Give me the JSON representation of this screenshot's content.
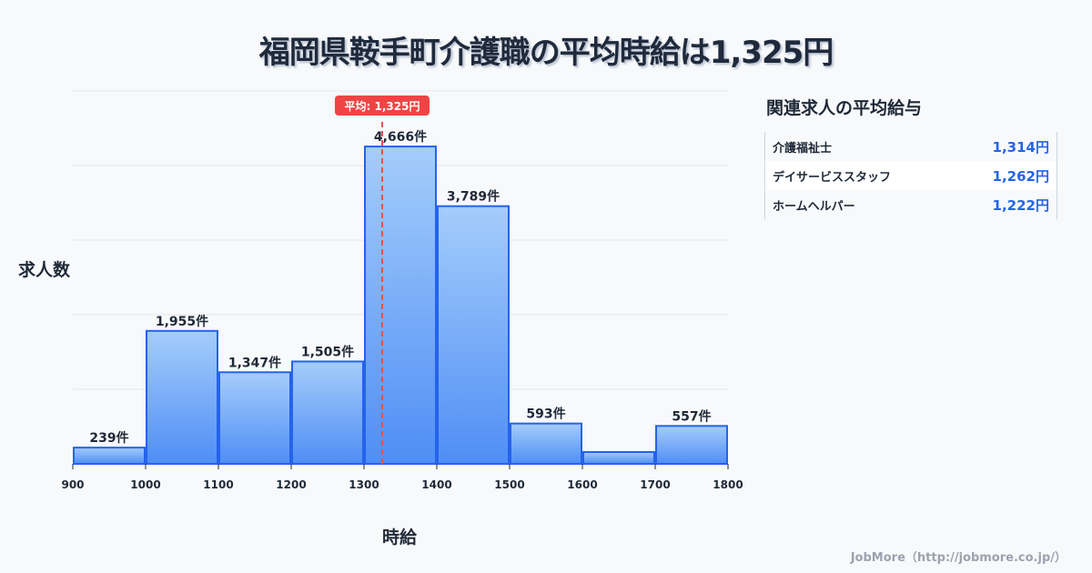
{
  "title": "福岡県鞍手町介護職の平均時給は1,325円",
  "chart_data": {
    "type": "bar",
    "title": "福岡県鞍手町介護職の平均時給は1,325円",
    "xlabel": "時給",
    "ylabel": "求人数",
    "bins": [
      900,
      1000,
      1100,
      1200,
      1300,
      1400,
      1500,
      1600,
      1700,
      1800
    ],
    "values": [
      239,
      1955,
      1347,
      1505,
      4666,
      3789,
      593,
      174,
      557
    ],
    "labels": [
      "239件",
      "1,955件",
      "1,347件",
      "1,505件",
      "4,666件",
      "3,789件",
      "593件",
      "",
      "557件"
    ],
    "tick_labels": [
      "900",
      "1000",
      "1100",
      "1200",
      "1300",
      "1400",
      "1500",
      "1600",
      "1700",
      "1800"
    ],
    "xlim": [
      900,
      1800
    ],
    "ylim": [
      0,
      5483
    ],
    "grid": true,
    "mean": 1325,
    "mean_label": "平均: 1,325円",
    "colors": {
      "bar_top": "#a5cdfb",
      "bar_bottom": "#4f8ef5",
      "bar_stroke": "#2563eb",
      "mean": "#e05252",
      "badge": "#ef4444"
    }
  },
  "side": {
    "title": "関連求人の平均給与",
    "rows": [
      {
        "name": "介護福祉士",
        "value": "1,314円"
      },
      {
        "name": "デイサービススタッフ",
        "value": "1,262円"
      },
      {
        "name": "ホームヘルパー",
        "value": "1,222円"
      }
    ]
  },
  "credit": "JobMore（http://jobmore.co.jp/）"
}
